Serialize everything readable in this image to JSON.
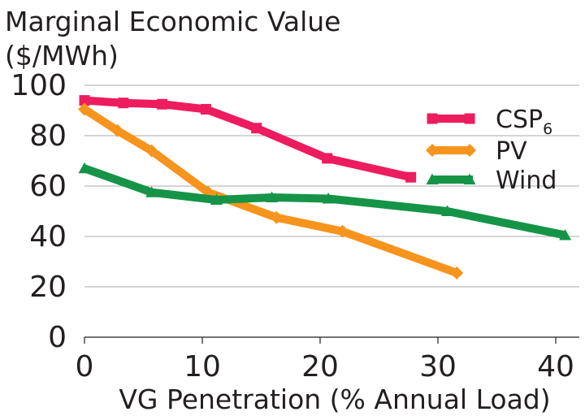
{
  "chart_data": {
    "type": "line",
    "title": "",
    "ylabel_line1": "Marginal Economic Value",
    "ylabel_line2": "($/MWh)",
    "xlabel": "VG Penetration (% Annual Load)",
    "xlim": [
      0,
      42
    ],
    "ylim": [
      0,
      100
    ],
    "x_ticks": [
      0,
      10,
      20,
      30,
      40
    ],
    "y_ticks": [
      0,
      20,
      40,
      60,
      80,
      100
    ],
    "grid": "horizontal",
    "legend_position": "top-right",
    "series": [
      {
        "name": "CSP",
        "name_subscript": "6",
        "color": "#ed1c5e",
        "marker": "square",
        "x": [
          0,
          3.3,
          6.6,
          10.3,
          14.6,
          20.6,
          27.7
        ],
        "y": [
          94,
          93,
          92.5,
          90.5,
          83,
          71,
          63.5
        ]
      },
      {
        "name": "PV",
        "color": "#f7941d",
        "marker": "diamond",
        "x": [
          0,
          2.8,
          5.7,
          10.5,
          16.3,
          21.9,
          31.6
        ],
        "y": [
          90.5,
          82,
          74,
          57.5,
          47.5,
          42,
          25.5
        ]
      },
      {
        "name": "Wind",
        "color": "#159447",
        "marker": "triangle",
        "x": [
          0,
          5.7,
          11.2,
          15.9,
          20.7,
          30.8,
          40.8
        ],
        "y": [
          67,
          57.5,
          54.5,
          55.5,
          55,
          50,
          40.5
        ]
      }
    ]
  }
}
